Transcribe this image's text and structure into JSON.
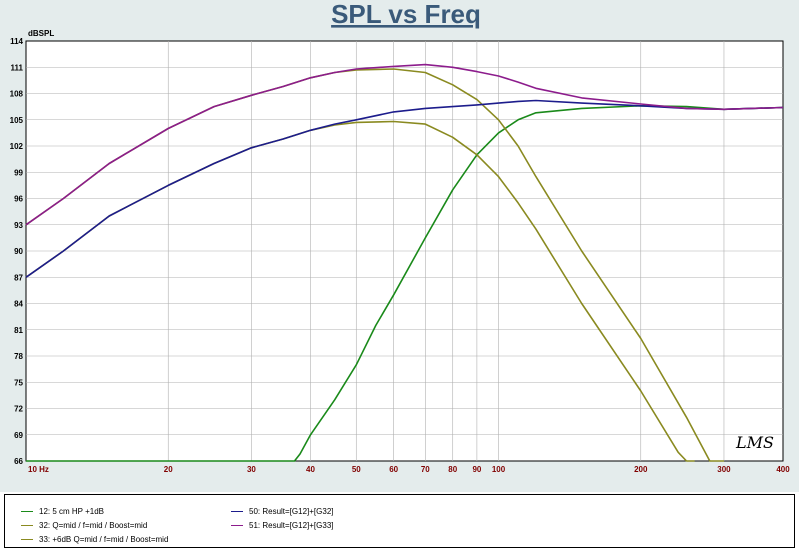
{
  "logo_text": "LMS",
  "chart_data": {
    "type": "line",
    "title": "SPL vs Freq",
    "ylabel": "dBSPL",
    "xlabel": "",
    "xscale": "log",
    "xlim": [
      10,
      400
    ],
    "ylim": [
      66,
      114
    ],
    "y_ticks": [
      66,
      69,
      72,
      75,
      78,
      81,
      84,
      87,
      90,
      93,
      96,
      99,
      102,
      105,
      108,
      111,
      114
    ],
    "x_ticks": [
      {
        "value": 10,
        "label": "10  Hz"
      },
      {
        "value": 20,
        "label": "20"
      },
      {
        "value": 30,
        "label": "30"
      },
      {
        "value": 40,
        "label": "40"
      },
      {
        "value": 50,
        "label": "50"
      },
      {
        "value": 60,
        "label": "60"
      },
      {
        "value": 70,
        "label": "70"
      },
      {
        "value": 80,
        "label": "80"
      },
      {
        "value": 90,
        "label": "90"
      },
      {
        "value": 100,
        "label": "100"
      },
      {
        "value": 200,
        "label": "200"
      },
      {
        "value": 300,
        "label": "300"
      },
      {
        "value": 400,
        "label": "400"
      }
    ],
    "grid": true,
    "legend_position": "bottom",
    "series": [
      {
        "name": "12: 5 cm HP +1dB",
        "color": "#1a8a1a",
        "x": [
          10,
          20,
          30,
          37,
          38,
          40,
          45,
          50,
          55,
          60,
          70,
          80,
          90,
          100,
          110,
          120,
          150,
          200,
          250,
          300,
          400
        ],
        "y": [
          66,
          66,
          66,
          66,
          66.8,
          69,
          73,
          77,
          81.5,
          85,
          91.5,
          97,
          101,
          103.5,
          105,
          105.8,
          106.3,
          106.6,
          106.5,
          106.2,
          106.4
        ]
      },
      {
        "name": "32: Q=mid / f=mid / Boost=mid",
        "color": "#8a8a20",
        "x": [
          10,
          12,
          15,
          20,
          25,
          30,
          35,
          40,
          45,
          50,
          60,
          70,
          80,
          90,
          100,
          110,
          120,
          150,
          200,
          240,
          250,
          260
        ],
        "y": [
          87,
          90,
          94,
          97.5,
          100,
          101.8,
          102.8,
          103.8,
          104.4,
          104.7,
          104.8,
          104.5,
          103,
          101,
          98.5,
          95.5,
          92.5,
          84,
          74,
          67,
          66,
          65.5
        ]
      },
      {
        "name": "33: +6dB Q=mid / f=mid / Boost=mid",
        "color": "#8a8a20",
        "x": [
          10,
          12,
          15,
          20,
          25,
          30,
          35,
          40,
          45,
          50,
          60,
          70,
          80,
          90,
          100,
          110,
          120,
          150,
          200,
          250,
          280,
          300
        ],
        "y": [
          93,
          96,
          100,
          104,
          106.5,
          107.8,
          108.8,
          109.8,
          110.4,
          110.7,
          110.8,
          110.4,
          109,
          107.3,
          105,
          102,
          98.5,
          90,
          80,
          71,
          66,
          65.5
        ]
      },
      {
        "name": "50: Result=[G12]+[G32]",
        "color": "#1c1c8c",
        "x": [
          10,
          12,
          15,
          20,
          25,
          30,
          35,
          40,
          45,
          50,
          60,
          70,
          80,
          90,
          100,
          110,
          120,
          150,
          200,
          250,
          300,
          400
        ],
        "y": [
          87,
          90,
          94,
          97.5,
          100,
          101.8,
          102.8,
          103.8,
          104.5,
          105,
          105.9,
          106.3,
          106.5,
          106.7,
          106.9,
          107.1,
          107.2,
          106.9,
          106.6,
          106.3,
          106.2,
          106.4
        ]
      },
      {
        "name": "51: Result=[G12]+[G33]",
        "color": "#8c1c8c",
        "x": [
          10,
          12,
          15,
          20,
          25,
          30,
          35,
          40,
          45,
          50,
          60,
          70,
          80,
          90,
          100,
          110,
          120,
          150,
          200,
          250,
          300,
          400
        ],
        "y": [
          93,
          96,
          100,
          104,
          106.5,
          107.8,
          108.8,
          109.8,
          110.4,
          110.8,
          111.1,
          111.3,
          111,
          110.5,
          110,
          109.3,
          108.6,
          107.5,
          106.8,
          106.3,
          106.2,
          106.4
        ]
      }
    ]
  }
}
